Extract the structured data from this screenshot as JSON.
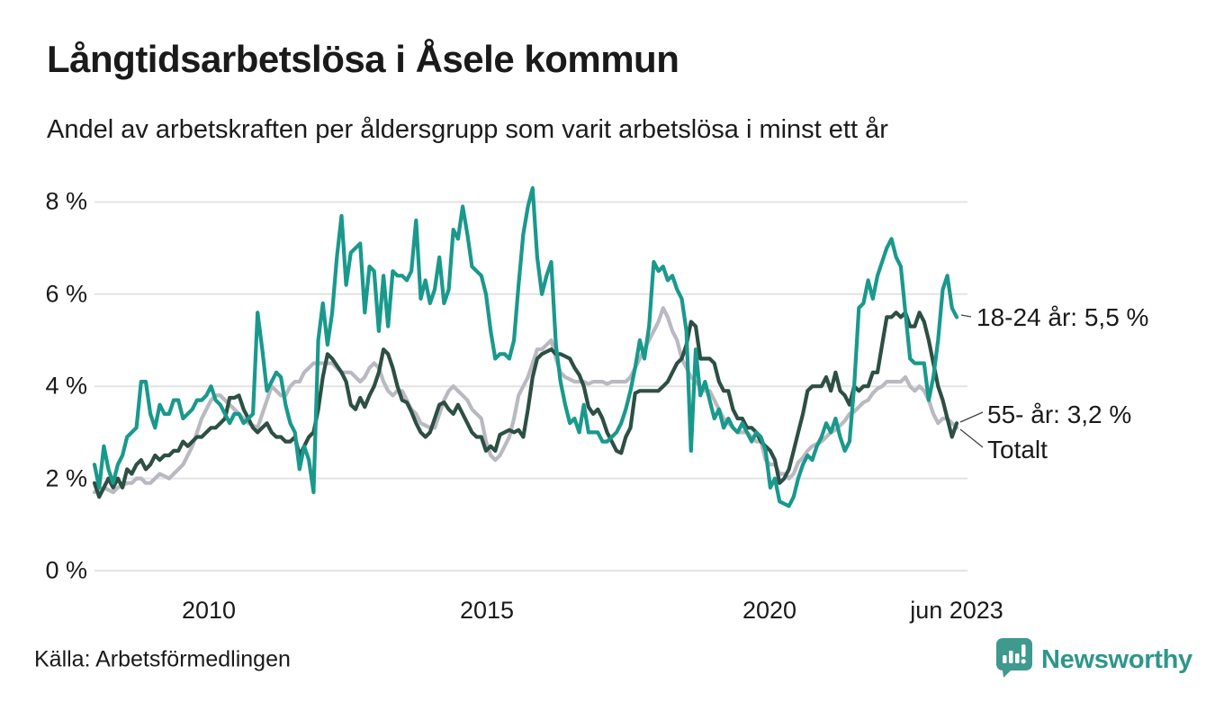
{
  "header": {
    "title": "Långtidsarbetslösa i Åsele kommun",
    "subtitle": "Andel av arbetskraften per åldersgrupp som varit arbetslösa i minst ett år"
  },
  "footer": {
    "source": "Källa: Arbetsförmedlingen",
    "brand": "Newsworthy"
  },
  "colors": {
    "young": "#19998c",
    "old": "#2d4f44",
    "total": "#b9b9c1",
    "grid": "#e3e3e3",
    "text": "#1a1a1a",
    "leader": "#444444",
    "brand": "#2e968b",
    "logo": "#3f998e"
  },
  "chart_data": {
    "type": "line",
    "title": "Långtidsarbetslösa i Åsele kommun",
    "subtitle": "Andel av arbetskraften per åldersgrupp som varit arbetslösa i minst ett år",
    "frequency": "monthly",
    "x_start": "2008-01",
    "x_end": "2023-06",
    "x_tick_labels": [
      "2010",
      "2015",
      "2020",
      "jun 2023"
    ],
    "y_tick_labels": [
      "0 %",
      "2 %",
      "4 %",
      "6 %",
      "8 %"
    ],
    "y_tick_values": [
      0,
      2,
      4,
      6,
      8
    ],
    "ylim": [
      0,
      8.6
    ],
    "ylabel": "",
    "xlabel": "",
    "grid": "horizontal",
    "legend_position": "end-of-line labels, right side",
    "series": [
      {
        "name": "18-24 år",
        "end_label": "18-24 år: 5,5 %",
        "last_value": 5.5,
        "color": "#19998c",
        "values": [
          2.3,
          1.8,
          2.7,
          2.2,
          1.9,
          2.3,
          2.5,
          2.9,
          3.0,
          3.1,
          4.1,
          4.1,
          3.4,
          3.1,
          3.6,
          3.4,
          3.4,
          3.7,
          3.7,
          3.3,
          3.4,
          3.5,
          3.7,
          3.7,
          3.8,
          4.0,
          3.7,
          3.6,
          3.4,
          3.2,
          3.4,
          3.4,
          3.2,
          3.3,
          3.4,
          5.6,
          4.8,
          3.9,
          4.1,
          4.3,
          4.2,
          3.6,
          3.2,
          3.0,
          2.2,
          2.7,
          2.4,
          1.7,
          5.0,
          5.8,
          4.9,
          5.6,
          6.8,
          7.7,
          6.2,
          6.9,
          7.0,
          7.1,
          5.6,
          6.6,
          6.5,
          5.2,
          6.4,
          5.3,
          6.5,
          6.4,
          6.4,
          6.3,
          6.5,
          7.6,
          5.9,
          6.3,
          5.8,
          6.1,
          6.8,
          5.8,
          6.1,
          7.4,
          7.2,
          7.9,
          7.3,
          6.6,
          6.5,
          6.4,
          6.0,
          5.2,
          4.6,
          4.7,
          4.7,
          4.6,
          5.0,
          6.2,
          7.3,
          7.9,
          8.3,
          6.8,
          6.0,
          6.4,
          6.7,
          4.9,
          4.1,
          3.6,
          3.2,
          3.3,
          3.0,
          3.6,
          3.0,
          3.0,
          3.0,
          2.8,
          2.8,
          2.9,
          3.0,
          3.2,
          3.5,
          3.9,
          4.4,
          5.0,
          4.6,
          5.3,
          6.7,
          6.5,
          6.6,
          6.3,
          6.4,
          6.1,
          5.9,
          5.2,
          2.6,
          4.8,
          3.8,
          4.1,
          3.7,
          3.3,
          3.5,
          3.1,
          3.3,
          3.1,
          3.0,
          3.2,
          3.0,
          2.8,
          3.0,
          2.9,
          2.6,
          1.8,
          2.0,
          1.5,
          1.45,
          1.4,
          1.6,
          2.0,
          2.3,
          2.5,
          2.4,
          2.7,
          2.9,
          3.2,
          3.0,
          3.3,
          2.9,
          2.6,
          2.8,
          4.0,
          5.7,
          5.8,
          6.3,
          5.9,
          6.4,
          6.7,
          7.0,
          7.2,
          6.8,
          6.6,
          5.6,
          4.6,
          4.5,
          4.5,
          4.5,
          3.7,
          4.2,
          5.0,
          6.1,
          6.4,
          5.7,
          5.5
        ]
      },
      {
        "name": "55- år",
        "end_label": "55- år: 3,2 %",
        "last_value": 3.2,
        "color": "#2d4f44",
        "values": [
          1.9,
          1.6,
          1.8,
          2.0,
          1.8,
          2.0,
          1.8,
          2.2,
          2.1,
          2.3,
          2.4,
          2.2,
          2.3,
          2.5,
          2.4,
          2.5,
          2.5,
          2.6,
          2.6,
          2.8,
          2.7,
          2.8,
          2.9,
          2.9,
          3.0,
          3.1,
          3.1,
          3.2,
          3.3,
          3.75,
          3.75,
          3.8,
          3.5,
          3.3,
          3.1,
          3.0,
          3.1,
          3.2,
          3.0,
          2.9,
          2.9,
          2.8,
          2.8,
          2.9,
          2.5,
          2.7,
          2.9,
          3.0,
          3.5,
          4.2,
          4.7,
          4.6,
          4.45,
          4.3,
          4.1,
          3.6,
          3.5,
          3.75,
          3.55,
          3.8,
          4.0,
          4.3,
          4.8,
          4.7,
          4.4,
          4.0,
          3.7,
          3.65,
          3.45,
          3.2,
          3.0,
          2.9,
          3.0,
          3.3,
          3.6,
          3.65,
          3.5,
          3.4,
          3.6,
          3.4,
          3.2,
          3.0,
          2.9,
          2.9,
          2.6,
          2.7,
          2.6,
          2.95,
          3.0,
          3.05,
          3.0,
          3.05,
          2.9,
          3.5,
          4.2,
          4.6,
          4.7,
          4.75,
          4.8,
          4.7,
          4.7,
          4.65,
          4.6,
          4.4,
          4.25,
          4.0,
          3.55,
          3.4,
          3.5,
          3.3,
          3.0,
          2.8,
          2.6,
          2.55,
          2.9,
          3.1,
          3.85,
          3.9,
          3.9,
          3.9,
          3.9,
          3.9,
          4.0,
          4.1,
          4.3,
          4.5,
          4.6,
          4.9,
          5.4,
          5.3,
          4.6,
          4.6,
          4.6,
          4.5,
          4.1,
          3.9,
          3.9,
          3.5,
          3.3,
          3.3,
          3.1,
          3.1,
          3.0,
          2.8,
          2.7,
          2.6,
          2.4,
          1.9,
          2.0,
          2.2,
          2.6,
          3.0,
          3.4,
          3.9,
          4.0,
          4.0,
          4.0,
          4.2,
          3.9,
          4.3,
          3.9,
          3.8,
          3.6,
          4.0,
          3.9,
          4.0,
          4.0,
          4.3,
          4.3,
          4.9,
          5.5,
          5.5,
          5.6,
          5.5,
          5.6,
          5.3,
          5.3,
          5.6,
          5.4,
          5.0,
          4.5,
          4.0,
          3.7,
          3.3,
          2.9,
          3.2
        ]
      },
      {
        "name": "Totalt",
        "end_label": "Totalt",
        "last_value": 3.1,
        "color": "#b9b9c1",
        "values": [
          1.7,
          1.75,
          1.8,
          1.75,
          1.7,
          1.8,
          1.85,
          1.9,
          1.9,
          2.0,
          2.0,
          1.9,
          1.9,
          2.0,
          2.1,
          2.05,
          2.0,
          2.1,
          2.2,
          2.3,
          2.5,
          2.7,
          3.0,
          3.3,
          3.5,
          3.7,
          3.8,
          3.8,
          3.7,
          3.6,
          3.5,
          3.4,
          3.3,
          3.2,
          3.15,
          3.1,
          3.4,
          3.7,
          4.0,
          3.9,
          3.8,
          3.8,
          4.0,
          4.1,
          4.1,
          4.3,
          4.4,
          4.5,
          4.5,
          4.5,
          4.5,
          4.5,
          4.4,
          4.3,
          4.3,
          4.3,
          4.2,
          4.1,
          4.2,
          4.4,
          4.5,
          4.4,
          4.1,
          3.9,
          3.8,
          3.9,
          3.9,
          3.7,
          3.5,
          3.4,
          3.2,
          3.15,
          3.1,
          3.1,
          3.4,
          3.7,
          3.9,
          4.0,
          3.9,
          3.8,
          3.7,
          3.5,
          3.4,
          3.3,
          2.8,
          2.5,
          2.4,
          2.5,
          2.7,
          2.9,
          3.3,
          3.8,
          4.0,
          4.2,
          4.5,
          4.8,
          4.8,
          4.9,
          5.0,
          4.6,
          4.3,
          4.2,
          4.15,
          4.1,
          4.1,
          4.1,
          4.05,
          4.1,
          4.1,
          4.1,
          4.05,
          4.1,
          4.1,
          4.1,
          4.1,
          4.2,
          4.4,
          4.6,
          4.8,
          5.0,
          5.2,
          5.4,
          5.7,
          5.5,
          5.2,
          5.0,
          4.6,
          4.4,
          4.2,
          4.1,
          4.0,
          3.9,
          3.9,
          3.7,
          3.5,
          3.3,
          3.2,
          3.1,
          3.0,
          3.0,
          3.0,
          2.9,
          2.8,
          2.8,
          2.4,
          2.3,
          2.3,
          2.1,
          2.1,
          2.0,
          2.1,
          2.35,
          2.45,
          2.6,
          2.7,
          2.75,
          2.8,
          2.9,
          3.0,
          3.05,
          3.15,
          3.25,
          3.4,
          3.45,
          3.55,
          3.65,
          3.7,
          3.85,
          3.95,
          4.0,
          4.1,
          4.1,
          4.1,
          4.1,
          4.2,
          4.0,
          3.9,
          4.0,
          3.9,
          3.7,
          3.4,
          3.2,
          3.3,
          3.3,
          3.2,
          3.1
        ]
      }
    ]
  }
}
